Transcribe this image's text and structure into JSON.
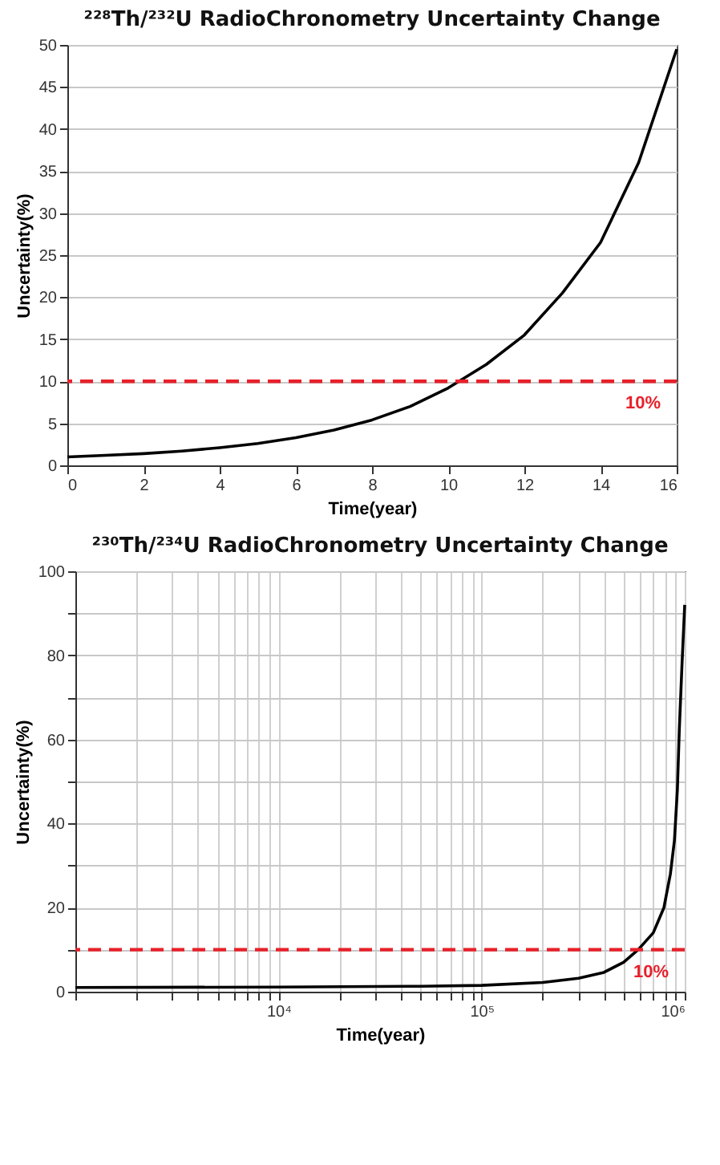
{
  "chart_data": [
    {
      "type": "line",
      "title": "²²⁸Th/²³²U RadioChronometry Uncertainty Change",
      "xlabel": "Time(year)",
      "ylabel": "Uncertainty(%)",
      "x": [
        0,
        1,
        2,
        3,
        4,
        5,
        6,
        7,
        8,
        9,
        10,
        11,
        12,
        13,
        14,
        15,
        16
      ],
      "series": [
        {
          "color": "#000000",
          "values": [
            1.0,
            1.2,
            1.4,
            1.7,
            2.1,
            2.6,
            3.3,
            4.2,
            5.4,
            7.0,
            9.2,
            12,
            15.5,
            20.5,
            26.5,
            36,
            49.5
          ]
        }
      ],
      "xlim": [
        0,
        16
      ],
      "xticks": [
        0,
        2,
        4,
        6,
        8,
        10,
        12,
        14,
        16
      ],
      "ylim": [
        0,
        50
      ],
      "yticks": [
        0,
        5,
        10,
        15,
        20,
        25,
        30,
        35,
        40,
        45,
        50
      ],
      "grid": "y",
      "ref_lines": [
        {
          "axis": "y",
          "value": 10,
          "label": "10%",
          "color": "#e8202a",
          "line_style": "dashed"
        }
      ]
    },
    {
      "type": "line",
      "title": "²³⁰Th/²³⁴U RadioChronometry Uncertainty Change",
      "xlabel": "Time(year)",
      "ylabel": "Uncertainty(%)",
      "x": [
        1000,
        10000,
        50000,
        100000,
        200000,
        300000,
        400000,
        500000,
        590000,
        700000,
        790000,
        850000,
        890000,
        920000,
        940000,
        970000,
        1000000
      ],
      "series": [
        {
          "color": "#000000",
          "values": [
            1,
            1.1,
            1.3,
            1.5,
            2.2,
            3.2,
            4.6,
            7,
            10,
            14,
            20,
            28,
            36,
            48,
            62,
            78,
            92
          ]
        }
      ],
      "log": "x",
      "xlim": [
        1000,
        1000000
      ],
      "xticks": [
        {
          "value": 1000,
          "label": null
        },
        {
          "value": 2000,
          "label": null
        },
        {
          "value": 3000,
          "label": null
        },
        {
          "value": 4000,
          "label": null
        },
        {
          "value": 5000,
          "label": null
        },
        {
          "value": 6000,
          "label": null
        },
        {
          "value": 7000,
          "label": null
        },
        {
          "value": 8000,
          "label": null
        },
        {
          "value": 9000,
          "label": null
        },
        {
          "value": 10000,
          "label": "10⁴"
        },
        {
          "value": 20000,
          "label": null
        },
        {
          "value": 30000,
          "label": null
        },
        {
          "value": 40000,
          "label": null
        },
        {
          "value": 50000,
          "label": null
        },
        {
          "value": 60000,
          "label": null
        },
        {
          "value": 70000,
          "label": null
        },
        {
          "value": 80000,
          "label": null
        },
        {
          "value": 90000,
          "label": null
        },
        {
          "value": 100000,
          "label": "10⁵"
        },
        {
          "value": 200000,
          "label": null
        },
        {
          "value": 300000,
          "label": null
        },
        {
          "value": 400000,
          "label": null
        },
        {
          "value": 500000,
          "label": null
        },
        {
          "value": 600000,
          "label": null
        },
        {
          "value": 700000,
          "label": null
        },
        {
          "value": 800000,
          "label": null
        },
        {
          "value": 900000,
          "label": null
        },
        {
          "value": 1000000,
          "label": "10⁶"
        }
      ],
      "ylim": [
        0,
        100
      ],
      "yticks": [
        0,
        {
          "value": 10,
          "label": null
        },
        20,
        {
          "value": 30,
          "label": null
        },
        40,
        {
          "value": 50,
          "label": null
        },
        60,
        {
          "value": 70,
          "label": null
        },
        80,
        {
          "value": 90,
          "label": null
        },
        100
      ],
      "grid": true,
      "ref_lines": [
        {
          "axis": "y",
          "value": 10,
          "label": "10%",
          "color": "#e8202a",
          "line_style": "dashed"
        }
      ]
    }
  ]
}
